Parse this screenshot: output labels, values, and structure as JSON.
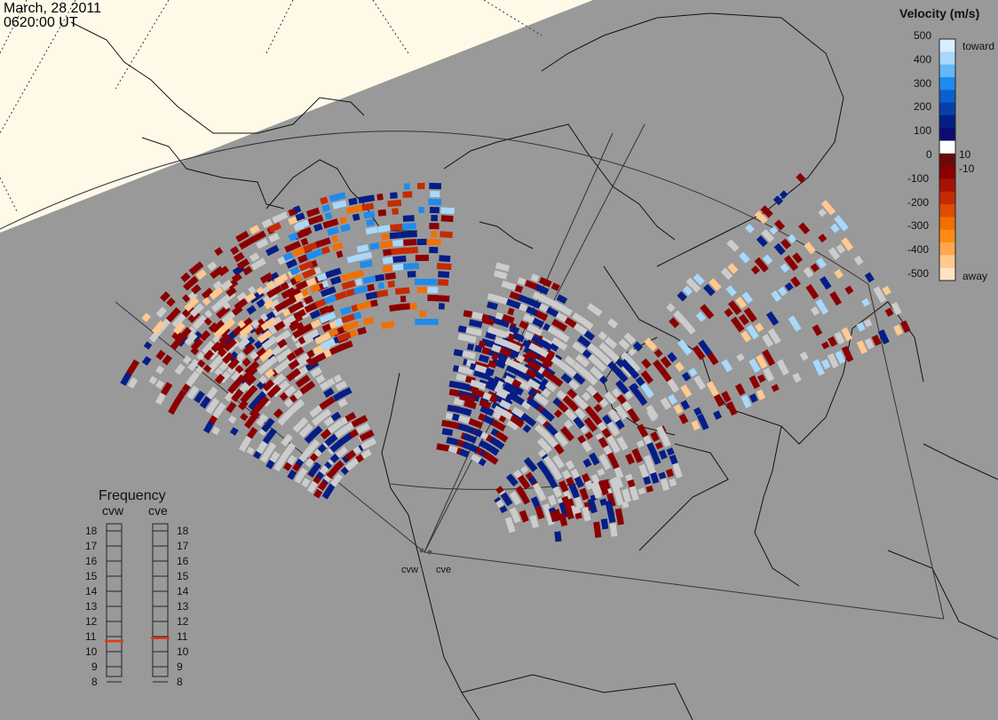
{
  "header": {
    "date": "March, 28 2011",
    "time": "0620:00 UT"
  },
  "colorbar": {
    "title": "Velocity (m/s)",
    "ticks": [
      "500",
      "400",
      "300",
      "200",
      "100",
      "0",
      "-100",
      "-200",
      "-300",
      "-400",
      "-500"
    ],
    "inner_ticks": [
      "10",
      "-10"
    ],
    "end_labels": {
      "top": "toward",
      "bottom": "away"
    },
    "colors": [
      "#d9eefe",
      "#a8d8fb",
      "#64b7f7",
      "#1e8bee",
      "#0a5fd0",
      "#073fa9",
      "#051e86",
      "#0d0b6e",
      "#ffffff",
      "#6a0a0a",
      "#8b0000",
      "#a81200",
      "#c52b00",
      "#e04c00",
      "#f26f00",
      "#ff8c12",
      "#ffa84f",
      "#ffc98f",
      "#ffe3c3"
    ]
  },
  "frequency": {
    "title": "Frequency",
    "radars": [
      "cvw",
      "cve"
    ],
    "scale": [
      "18",
      "17",
      "16",
      "15",
      "14",
      "13",
      "12",
      "11",
      "10",
      "9",
      "8"
    ],
    "cvw_mhz": 10.7,
    "cve_mhz": 10.9
  },
  "sites": [
    "cvw",
    "cve"
  ],
  "colors": {
    "background": "#999999",
    "daylight": "#fff9e8",
    "ground_scatter": "#cccccc",
    "marker": "#e33a10"
  }
}
